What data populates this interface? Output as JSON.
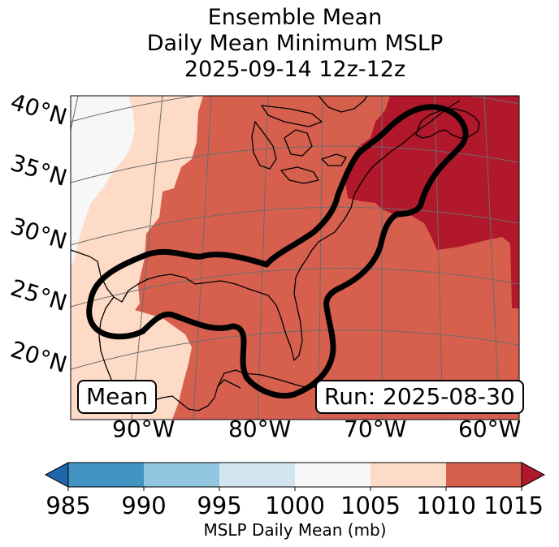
{
  "title": {
    "line1": "Ensemble Mean",
    "line2": "Daily Mean Minimum MSLP",
    "line3": "2025-09-14 12z-12z"
  },
  "map": {
    "lat_labels": [
      "40°N",
      "35°N",
      "30°N",
      "25°N",
      "20°N"
    ],
    "lon_labels": [
      "90°W",
      "80°W",
      "70°W",
      "60°W"
    ],
    "mean_box": "Mean",
    "run_box": "Run: 2025-08-30",
    "fill_colors": {
      "1000-1005": "#f7f7f7",
      "1005-1010": "#fddbc7",
      "1010-1015": "#d6604d",
      "above-1015": "#b2182b"
    },
    "contour_color": "#000000",
    "coastline_color": "#000000",
    "gridline_color": "#6b6b6b"
  },
  "colorbar": {
    "label": "MSLP Daily Mean (mb)",
    "ticks": [
      "985",
      "990",
      "995",
      "1000",
      "1005",
      "1010",
      "1015"
    ],
    "colors": [
      "#2166ac",
      "#4393c3",
      "#92c5de",
      "#d1e5f0",
      "#f7f7f7",
      "#fddbc7",
      "#d6604d",
      "#b2182b"
    ],
    "extend": "both"
  }
}
